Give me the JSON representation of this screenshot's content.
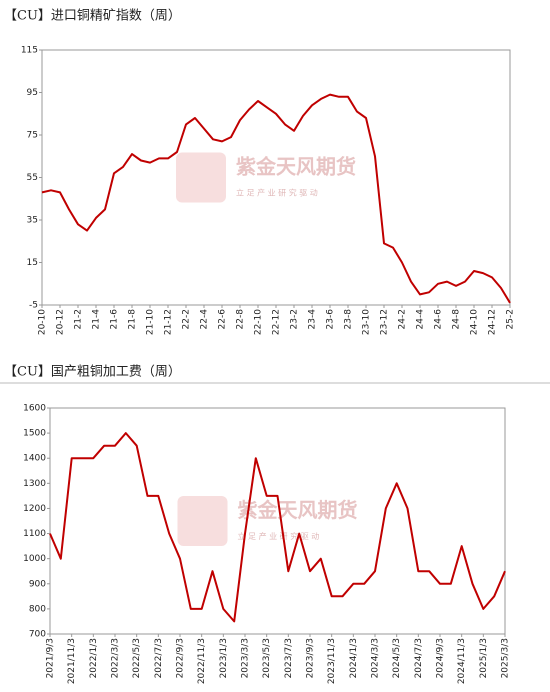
{
  "chart_data": [
    {
      "type": "line",
      "title": "【CU】进口铜精矿指数（周）",
      "watermark": {
        "brand": "紫金天风期货",
        "slogan": "立 足 产 业   研 究 驱 动"
      },
      "categories": [
        "20-10",
        null,
        "20-12",
        null,
        "21-2",
        null,
        "21-4",
        null,
        "21-6",
        null,
        "21-8",
        null,
        "21-10",
        null,
        "21-12",
        null,
        "22-2",
        null,
        "22-4",
        null,
        "22-6",
        null,
        "22-8",
        null,
        "22-10",
        null,
        "22-12",
        null,
        "23-2",
        null,
        "23-4",
        null,
        "23-6",
        null,
        "23-8",
        null,
        "23-10",
        null,
        "23-12",
        null,
        "24-2",
        null,
        "24-4",
        null,
        "24-6",
        null,
        "24-8",
        null,
        "24-10",
        null,
        "24-12",
        null,
        "25-2"
      ],
      "series": [
        {
          "color": "#c00000",
          "values": [
            48,
            49,
            48,
            40,
            33,
            30,
            36,
            40,
            57,
            60,
            66,
            63,
            62,
            64,
            64,
            67,
            80,
            83,
            78,
            73,
            72,
            74,
            82,
            87,
            91,
            88,
            85,
            80,
            77,
            84,
            89,
            92,
            94,
            93,
            93,
            86,
            83,
            65,
            24,
            22,
            15,
            6,
            0,
            1,
            5,
            6,
            4,
            6,
            11,
            10,
            8,
            3,
            -4
          ]
        }
      ],
      "ylim": [
        -5,
        115
      ],
      "yticks": [
        -5,
        15,
        35,
        55,
        75,
        95,
        115
      ],
      "grid": false
    },
    {
      "type": "line",
      "title": "【CU】国产粗铜加工费（周）",
      "watermark": {
        "brand": "紫金天风期货",
        "slogan": "立 足 产 业   研 究 驱 动"
      },
      "categories": [
        "2021/9/3",
        null,
        "2021/11/3",
        null,
        "2022/1/3",
        null,
        "2022/3/3",
        null,
        "2022/5/3",
        null,
        "2022/7/3",
        null,
        "2022/9/3",
        null,
        "2022/11/3",
        null,
        "2023/1/3",
        null,
        "2023/3/3",
        null,
        "2023/5/3",
        null,
        "2023/7/3",
        null,
        "2023/9/3",
        null,
        "2023/11/3",
        null,
        "2024/1/3",
        null,
        "2024/3/3",
        null,
        "2024/5/3",
        null,
        "2024/7/3",
        null,
        "2024/9/3",
        null,
        "2024/11/3",
        null,
        "2025/1/3",
        null,
        "2025/3/3"
      ],
      "series": [
        {
          "color": "#c00000",
          "values": [
            1100,
            1000,
            1400,
            1400,
            1400,
            1450,
            1450,
            1500,
            1450,
            1250,
            1250,
            1100,
            1000,
            800,
            800,
            950,
            800,
            750,
            1100,
            1400,
            1250,
            1250,
            950,
            1100,
            950,
            1000,
            850,
            850,
            900,
            900,
            950,
            1200,
            1300,
            1200,
            950,
            950,
            900,
            900,
            1050,
            900,
            800,
            850,
            950
          ]
        }
      ],
      "ylim": [
        700,
        1600
      ],
      "yticks": [
        700,
        800,
        900,
        1000,
        1100,
        1200,
        1300,
        1400,
        1500,
        1600
      ],
      "grid": false
    }
  ]
}
